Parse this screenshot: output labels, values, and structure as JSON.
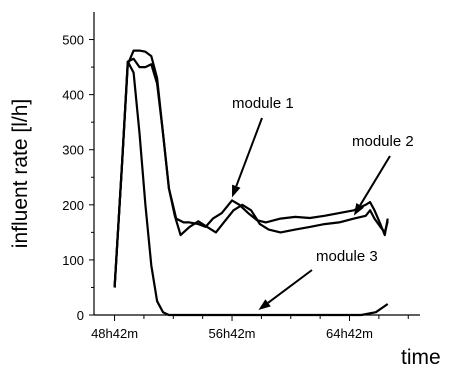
{
  "chart_data": {
    "type": "line",
    "title": "",
    "xlabel": "time",
    "ylabel": "influent rate [l/h]",
    "xlim": [
      47.3,
      69.5
    ],
    "ylim": [
      0,
      550
    ],
    "x_ticks": [
      48.7,
      56.7,
      64.7
    ],
    "x_tick_labels": [
      "48h42m",
      "56h42m",
      "64h42m"
    ],
    "y_ticks": [
      0,
      100,
      200,
      300,
      400,
      500
    ],
    "y_tick_labels": [
      "0",
      "100",
      "200",
      "300",
      "400",
      "500"
    ],
    "grid": false,
    "legend": "none",
    "series": [
      {
        "name": "module 1",
        "x": [
          48.7,
          49.2,
          49.6,
          50.0,
          50.4,
          50.8,
          51.2,
          51.6,
          52.0,
          52.4,
          52.9,
          53.4,
          53.8,
          54.4,
          54.9,
          55.4,
          56.0,
          56.7,
          57.2,
          57.8,
          58.4,
          59.0,
          60.0,
          61.0,
          62.0,
          63.0,
          64.0,
          65.0,
          65.8,
          66.1,
          66.4,
          66.8,
          67.1,
          67.3
        ],
        "y": [
          50,
          270,
          455,
          480,
          480,
          478,
          470,
          430,
          330,
          230,
          175,
          168,
          168,
          165,
          160,
          175,
          185,
          208,
          200,
          185,
          172,
          168,
          175,
          178,
          176,
          180,
          185,
          190,
          200,
          205,
          190,
          165,
          145,
          175
        ]
      },
      {
        "name": "module 2",
        "x": [
          48.7,
          49.2,
          49.6,
          50.0,
          50.4,
          50.8,
          51.2,
          51.6,
          52.0,
          52.4,
          52.8,
          53.2,
          53.8,
          54.4,
          55.0,
          55.6,
          56.2,
          56.8,
          57.4,
          58.0,
          58.6,
          59.2,
          60.0,
          61.0,
          62.0,
          63.0,
          64.0,
          65.0,
          65.8,
          66.1,
          66.4,
          66.8,
          67.1,
          67.3
        ],
        "y": [
          50,
          270,
          460,
          465,
          450,
          450,
          455,
          420,
          330,
          230,
          180,
          145,
          160,
          170,
          160,
          150,
          170,
          190,
          200,
          190,
          165,
          155,
          150,
          155,
          160,
          165,
          168,
          175,
          180,
          190,
          175,
          160,
          150,
          170
        ]
      },
      {
        "name": "module 3",
        "x": [
          48.7,
          49.2,
          49.6,
          50.0,
          50.4,
          50.8,
          51.2,
          51.6,
          52.0,
          52.4,
          52.8,
          53.2,
          54.0,
          56.0,
          58.0,
          60.0,
          62.0,
          64.0,
          65.5,
          66.5,
          67.3
        ],
        "y": [
          50,
          270,
          460,
          440,
          330,
          200,
          90,
          25,
          5,
          0,
          0,
          0,
          0,
          0,
          0,
          0,
          0,
          0,
          0,
          5,
          20
        ]
      }
    ],
    "annotations": [
      {
        "text": "module 1",
        "series": "module 1",
        "x": 56.7,
        "y": 208
      },
      {
        "text": "module 2",
        "series": "module 2",
        "x": 65.0,
        "y": 175
      },
      {
        "text": "module 3",
        "series": "module 3",
        "x": 58.5,
        "y": 0
      }
    ]
  }
}
